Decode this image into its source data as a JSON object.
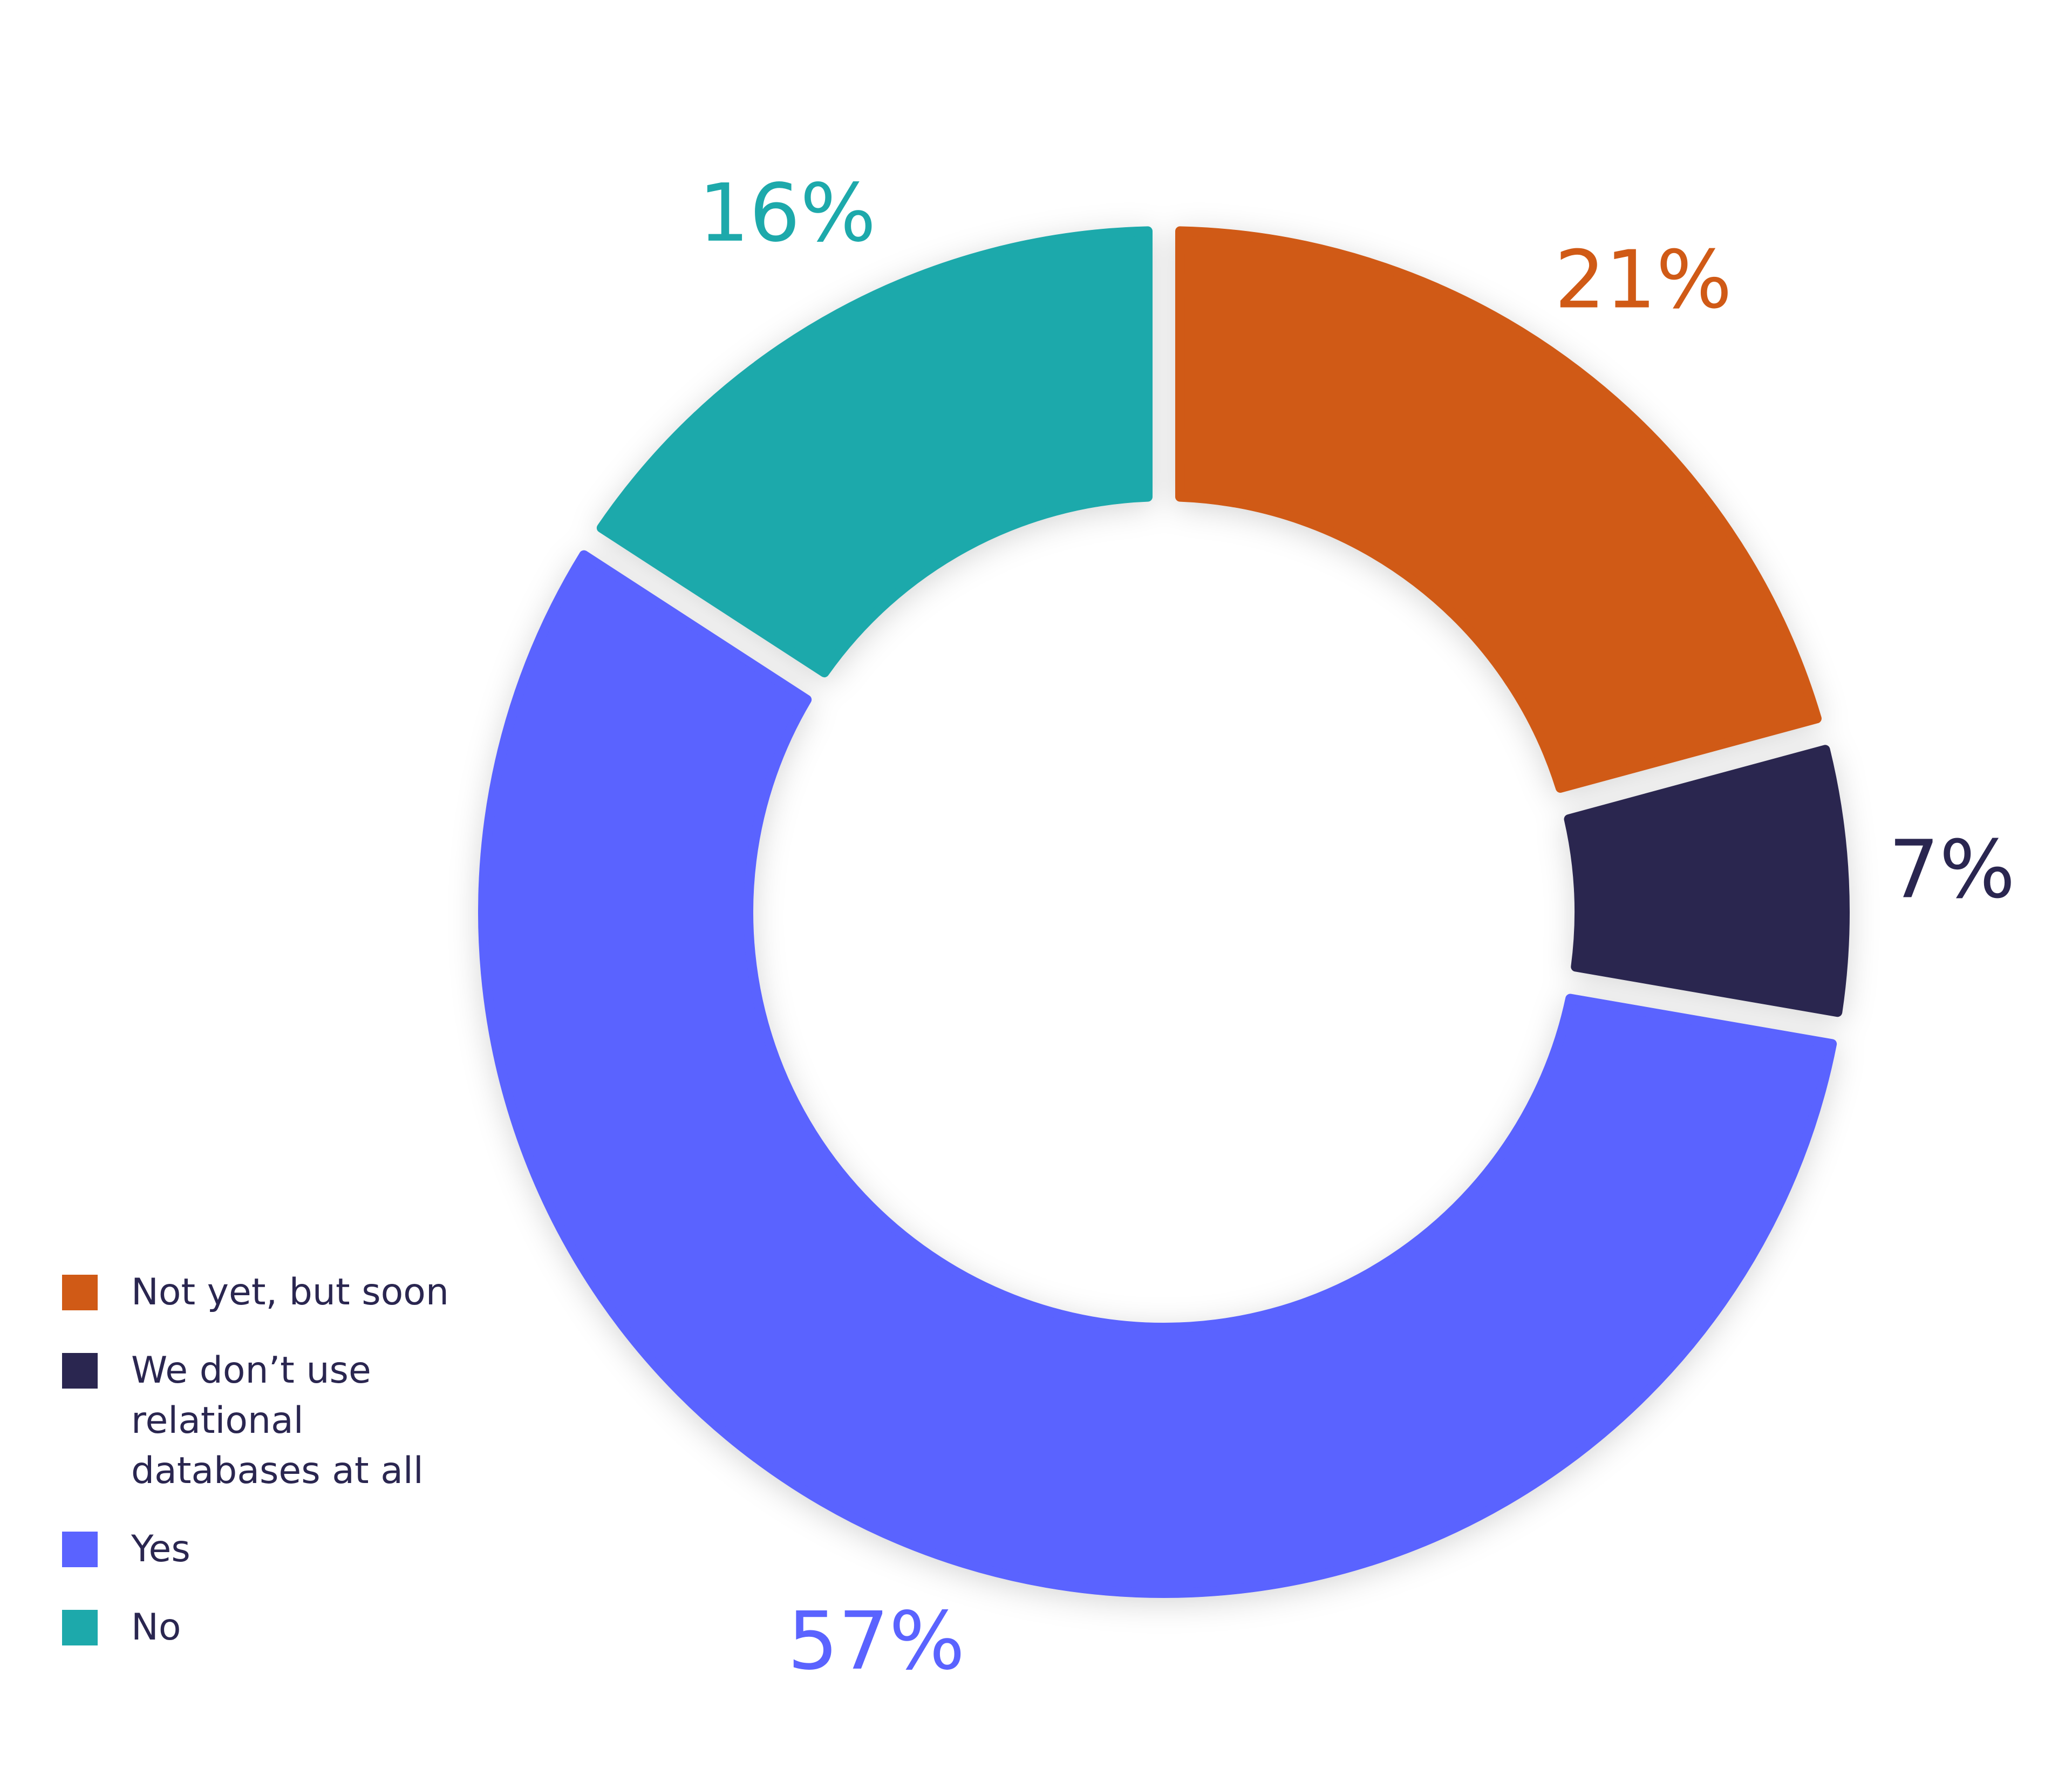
{
  "chart_data": {
    "type": "pie",
    "donut": true,
    "categories": [
      "Not yet, but soon",
      "We don’t use relational databases at all",
      "Yes",
      "No"
    ],
    "values": [
      21,
      7,
      57,
      16
    ],
    "value_labels": [
      "21%",
      "7%",
      "57%",
      "16%"
    ],
    "colors": [
      "#d05a16",
      "#2a2650",
      "#5a63ff",
      "#1da9ab"
    ],
    "legend": "bottom-left"
  }
}
